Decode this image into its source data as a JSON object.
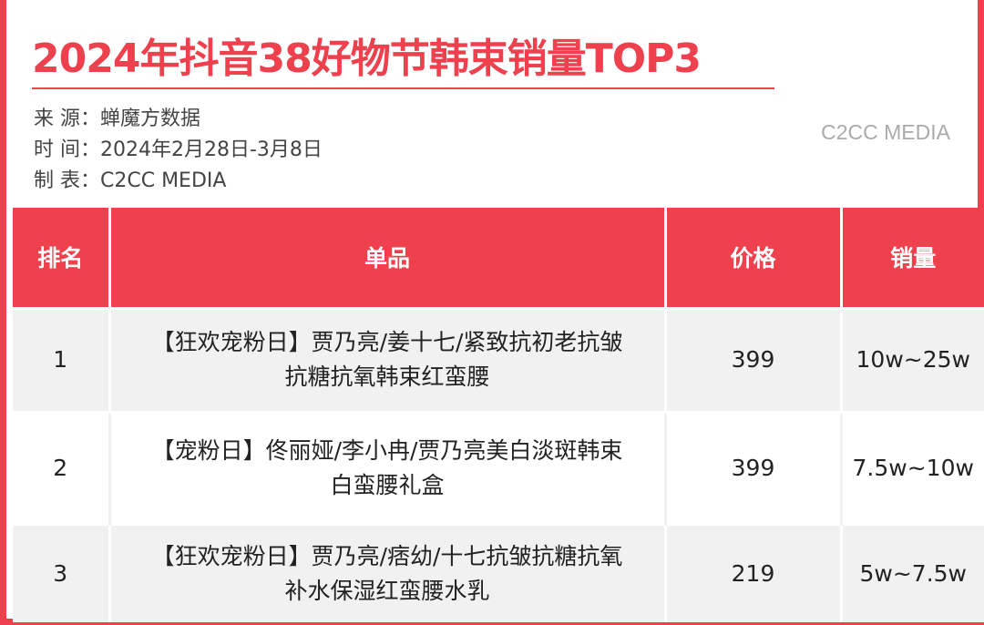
{
  "title": "2024年抖音38好物节韩束销量TOP3",
  "meta": {
    "source": "来  源：蝉魔方数据",
    "time": "时  间：2024年2月28日-3月8日",
    "maker": "制  表：C2CC  MEDIA"
  },
  "brand": "C2CC MEDIA",
  "colors": {
    "accent": "#ef404e",
    "row_alt": "#f1f1f1"
  },
  "table": {
    "headers": [
      "排名",
      "单品",
      "价格",
      "销量"
    ],
    "rows": [
      {
        "rank": "1",
        "product": "【狂欢宠粉日】贾乃亮/姜十七/紧致抗初老抗皱抗糖抗氧韩束红蛮腰",
        "price": "399",
        "sales": "10w~25w"
      },
      {
        "rank": "2",
        "product": "【宠粉日】佟丽娅/李小冉/贾乃亮美白淡斑韩束白蛮腰礼盒",
        "price": "399",
        "sales": "7.5w~10w"
      },
      {
        "rank": "3",
        "product": "【狂欢宠粉日】贾乃亮/痞幼/十七抗皱抗糖抗氧补水保湿红蛮腰水乳",
        "price": "219",
        "sales": "5w~7.5w"
      }
    ]
  }
}
